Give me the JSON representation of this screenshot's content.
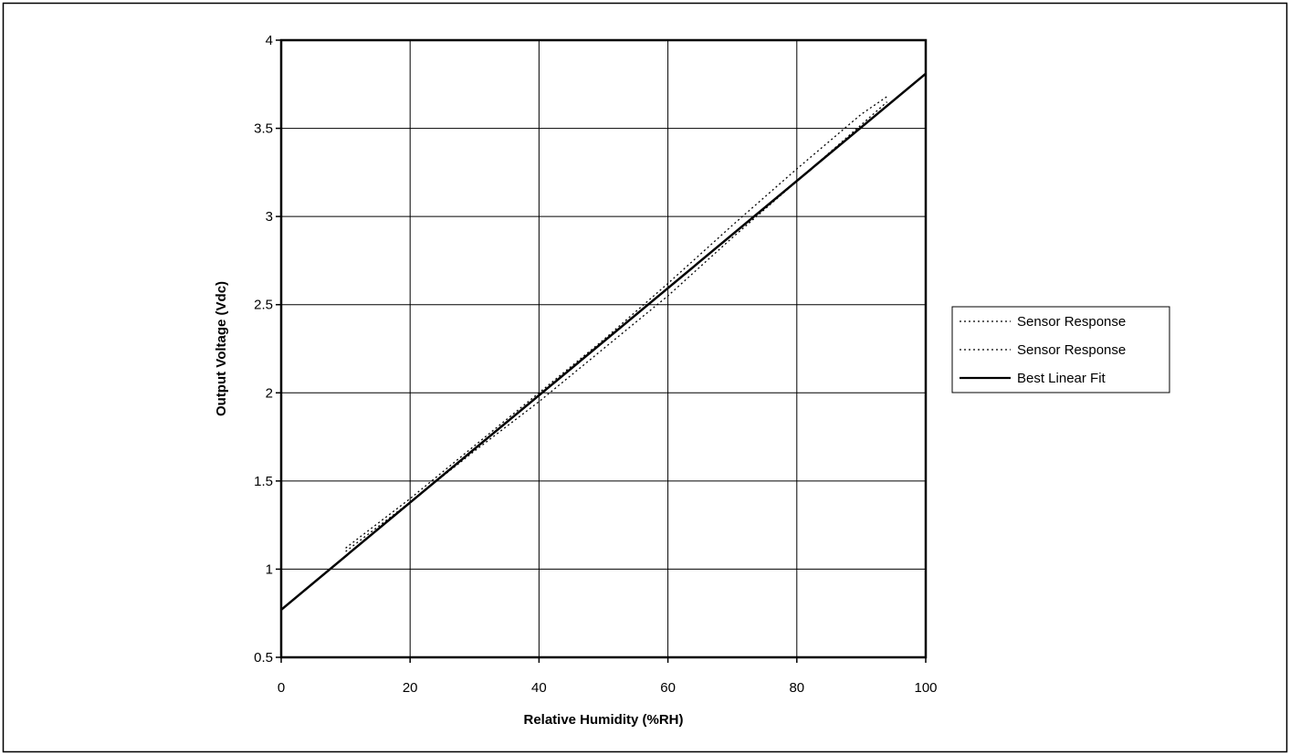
{
  "chart_data": {
    "type": "line",
    "title": "",
    "xlabel": "Relative Humidity (%RH)",
    "ylabel": "Output Voltage (Vdc)",
    "xlim": [
      0,
      100
    ],
    "ylim": [
      0.5,
      4
    ],
    "x_ticks": [
      "0",
      "20",
      "40",
      "60",
      "80",
      "100"
    ],
    "y_ticks": [
      "0.5",
      "1",
      "1.5",
      "2",
      "2.5",
      "3",
      "3.5",
      "4"
    ],
    "grid": true,
    "legend_position": "right",
    "series": [
      {
        "name": "Sensor Response",
        "style": "dotted",
        "x": [
          10,
          20,
          30,
          40,
          50,
          60,
          70,
          80,
          90,
          94
        ],
        "y": [
          1.12,
          1.4,
          1.7,
          2.0,
          2.3,
          2.62,
          2.95,
          3.27,
          3.58,
          3.68
        ]
      },
      {
        "name": "Sensor Response",
        "style": "dotted",
        "x": [
          10,
          20,
          30,
          40,
          50,
          60,
          70,
          80,
          90,
          94
        ],
        "y": [
          1.1,
          1.38,
          1.67,
          1.95,
          2.25,
          2.55,
          2.88,
          3.2,
          3.52,
          3.65
        ]
      },
      {
        "name": "Best Linear Fit",
        "style": "solid",
        "x": [
          0,
          100
        ],
        "y": [
          0.77,
          3.81
        ]
      }
    ]
  }
}
